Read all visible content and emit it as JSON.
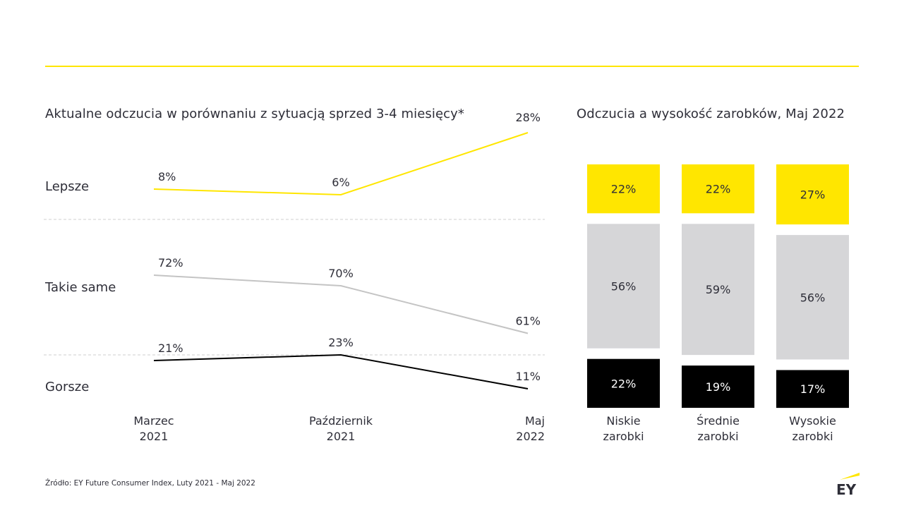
{
  "line_chart_title": "Aktualne odczucia w porównaniu z sytuacją sprzed 3-4 miesięcy*",
  "bar_chart_title": "Odczucia a wysokość zarobków, Maj 2022",
  "source": "Źródło: EY Future Consumer Index, Luty 2021 - Maj 2022",
  "logo_text": "EY",
  "colors": {
    "accent_yellow": "#ffe600",
    "gray": "#c4c4c4",
    "gray_bar": "#d6d6d8",
    "black": "#000000",
    "text": "#2e2e38"
  },
  "chart_data": [
    {
      "type": "line",
      "title": "Aktualne odczucia w porównaniu z sytuacją sprzed 3-4 miesięcy*",
      "categories": [
        [
          "Marzec",
          "2021"
        ],
        [
          "Październik",
          "2021"
        ],
        [
          "Maj",
          "2022"
        ]
      ],
      "series": [
        {
          "name": "Lepsze",
          "values": [
            8,
            6,
            28
          ],
          "labels": [
            "8%",
            "6%",
            "28%"
          ],
          "color": "#ffe600"
        },
        {
          "name": "Takie same",
          "values": [
            72,
            70,
            61
          ],
          "labels": [
            "72%",
            "70%",
            "61%"
          ],
          "color": "#c4c4c4"
        },
        {
          "name": "Gorsze",
          "values": [
            21,
            23,
            11
          ],
          "labels": [
            "21%",
            "23%",
            "11%"
          ],
          "color": "#000000"
        }
      ],
      "unit": "%",
      "grid": false,
      "layout_note": "each series drawn in its own horizontal band separated by dashed lines"
    },
    {
      "type": "bar",
      "stacked": true,
      "title": "Odczucia a wysokość zarobków, Maj 2022",
      "categories": [
        [
          "Niskie",
          "zarobki"
        ],
        [
          "Średnie",
          "zarobki"
        ],
        [
          "Wysokie",
          "zarobki"
        ]
      ],
      "series": [
        {
          "name": "Lepsze",
          "values": [
            22,
            22,
            27
          ],
          "labels": [
            "22%",
            "22%",
            "27%"
          ],
          "color": "#ffe600",
          "text_color": "#2e2e38"
        },
        {
          "name": "Takie same",
          "values": [
            56,
            59,
            56
          ],
          "labels": [
            "56%",
            "59%",
            "56%"
          ],
          "color": "#d6d6d8",
          "text_color": "#2e2e38"
        },
        {
          "name": "Gorsze",
          "values": [
            22,
            19,
            17
          ],
          "labels": [
            "22%",
            "19%",
            "17%"
          ],
          "color": "#000000",
          "text_color": "#ffffff"
        }
      ],
      "unit": "%"
    }
  ]
}
